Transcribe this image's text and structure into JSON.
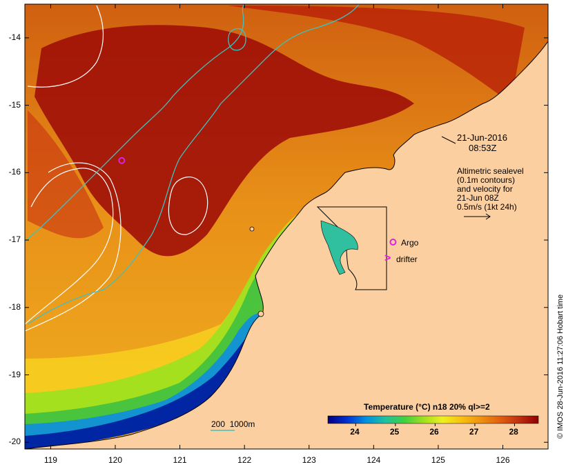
{
  "map": {
    "lon_range": [
      118.6,
      126.7
    ],
    "lat_range": [
      -20.1,
      -13.5
    ],
    "y_ticks": [
      "-14",
      "-15",
      "-16",
      "-17",
      "-18",
      "-19",
      "-20"
    ],
    "y_tick_values": [
      -14,
      -15,
      -16,
      -17,
      -18,
      -19,
      -20
    ],
    "x_ticks": [
      "119",
      "120",
      "121",
      "122",
      "123",
      "124",
      "125",
      "126"
    ],
    "x_tick_values": [
      119,
      120,
      121,
      122,
      123,
      124,
      125,
      126
    ],
    "land_color": "#fccfa0",
    "ocean_color": "#e89018"
  },
  "annotation": {
    "date": "21-Jun-2016",
    "time": "08:53Z",
    "legend_lines": [
      "Altimetric sealevel",
      "(0.1m contours)",
      "and velocity for",
      "21-Jun 08Z",
      "0.5m/s (1kt 24h)"
    ]
  },
  "markers": {
    "argo_label": "Argo",
    "drifter_label": "drifter",
    "drifter_symbol": ">",
    "argo_color": "#e020e0",
    "argo_float_position": [
      120.1,
      -15.82
    ],
    "legend_argo_position": [
      124.3,
      -17.03
    ],
    "legend_drifter_position": [
      124.2,
      -17.3
    ]
  },
  "isobath": {
    "label": "200  1000m",
    "color": "#40c0c0"
  },
  "colorbar": {
    "title": "Temperature (°C) n18 20% ql>=2",
    "tick_labels": [
      "24",
      "25",
      "26",
      "27",
      "28"
    ],
    "tick_values": [
      24,
      25,
      26,
      27,
      28
    ],
    "range": [
      23.3,
      28.6
    ],
    "colors": [
      "#000080",
      "#0030d0",
      "#0090e0",
      "#20c0a0",
      "#40d040",
      "#a0e020",
      "#f0f020",
      "#f8c010",
      "#f09010",
      "#e06010",
      "#c03010",
      "#900000"
    ]
  },
  "credit": "© IMOS 28-Jun-2016 11:27:06 Hobart time"
}
